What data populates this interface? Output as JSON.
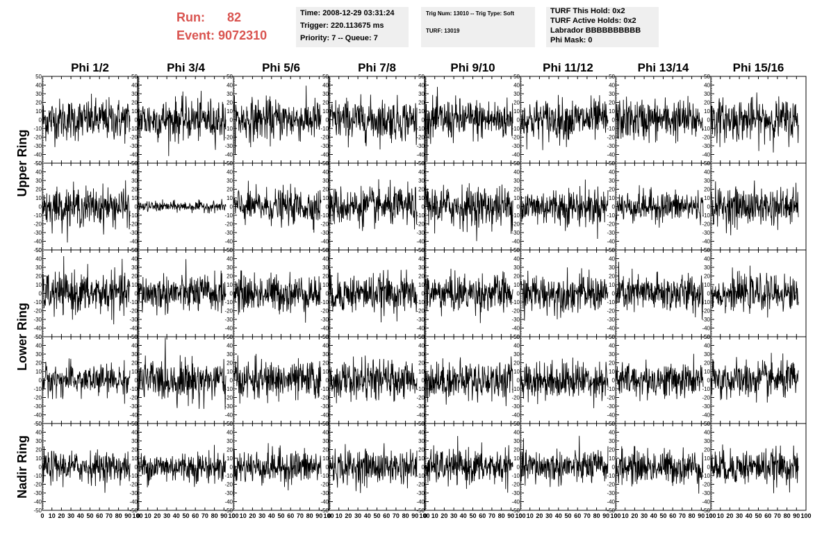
{
  "header": {
    "run_label": "Run:",
    "run_value": "82",
    "event_label": "Event:",
    "event_value": "9072310",
    "accent_color": "#d9534f",
    "time_box": {
      "line1": "Time: 2008-12-29 03:31:24",
      "line2": "Trigger: 220.113675 ms",
      "line3": "Priority: 7 -- Queue: 7"
    },
    "trig_box": {
      "line1": "Trig Num: 13010 -- Trig Type: Soft",
      "line2": "TURF: 13019"
    },
    "turf_box": {
      "line1": "TURF This Hold: 0x2",
      "line2": "TURF Active Holds: 0x2",
      "line3": "Labrador BBBBBBBBBB",
      "line4": "Phi Mask: 0"
    }
  },
  "chart_data": {
    "type": "line",
    "columns": [
      "Phi 1/2",
      "Phi 3/4",
      "Phi 5/6",
      "Phi 7/8",
      "Phi 9/10",
      "Phi 11/12",
      "Phi 13/14",
      "Phi 15/16"
    ],
    "rows": [
      "Upper Ring",
      "Lower Ring",
      "Nadir Ring"
    ],
    "row_bands": [
      {
        "label": "Upper Ring",
        "panels": [
          0,
          1
        ]
      },
      {
        "label": "Lower Ring",
        "panels": [
          2,
          3
        ]
      },
      {
        "label": "Nadir Ring",
        "panels": [
          4
        ]
      }
    ],
    "xlim": [
      0,
      100
    ],
    "ylim": [
      -50,
      50
    ],
    "x_ticks": [
      0,
      10,
      20,
      30,
      40,
      50,
      60,
      70,
      80,
      90,
      100
    ],
    "y_ticks": [
      -50,
      -40,
      -30,
      -20,
      -10,
      0,
      10,
      20,
      30,
      40,
      50
    ],
    "samples_per_trace": 260,
    "trace_x_range": [
      0,
      92
    ],
    "typical_amplitude": [
      [
        12,
        12,
        12,
        12,
        12,
        12,
        12,
        12
      ],
      [
        11,
        3,
        10,
        11,
        12,
        11,
        9,
        11
      ],
      [
        12,
        11,
        11,
        11,
        11,
        11,
        11,
        10
      ],
      [
        9,
        12,
        11,
        11,
        11,
        11,
        10,
        11
      ],
      [
        9,
        9,
        10,
        10,
        10,
        10,
        10,
        10
      ]
    ],
    "line_color": "#000000"
  }
}
